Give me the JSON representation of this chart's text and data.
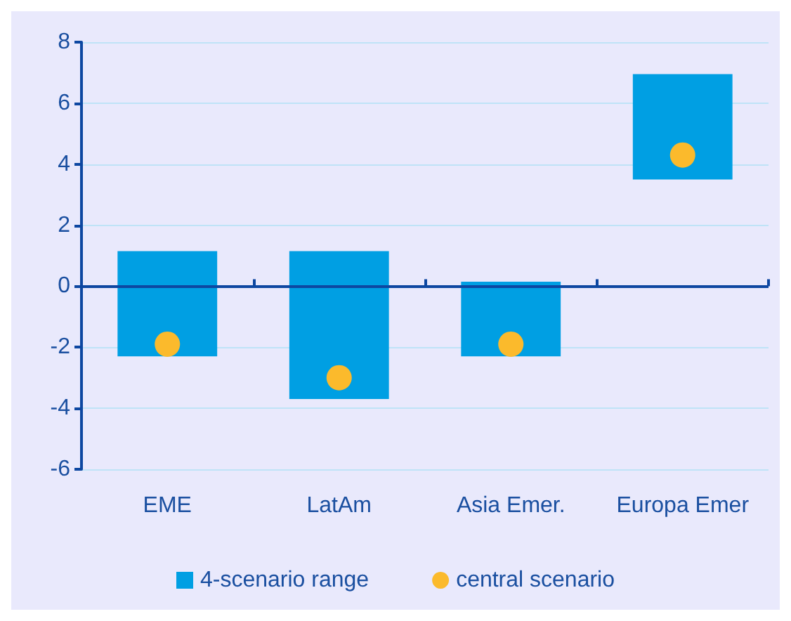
{
  "chart_data": {
    "type": "bar",
    "categories": [
      "EME",
      "LatAm",
      "Asia Emer.",
      "Europa Emer"
    ],
    "series": [
      {
        "name": "4-scenario range",
        "color": "#009fe3",
        "base": [
          -2.3,
          -3.7,
          -2.3,
          3.5
        ],
        "values": [
          3.45,
          4.85,
          2.45,
          3.45
        ]
      },
      {
        "name": "central scenario",
        "type": "scatter",
        "color": "#fbba2c",
        "x": [
          "EME",
          "LatAm",
          "Asia Emer.",
          "Europa Emer"
        ],
        "values": [
          -1.9,
          -3.0,
          -1.9,
          4.3
        ]
      }
    ],
    "ylim": [
      -6,
      8
    ],
    "yticks": [
      -6,
      -4,
      -2,
      0,
      2,
      4,
      6,
      8
    ],
    "ref_lines": [
      {
        "axis": "y",
        "value": 0,
        "color": "#0d47a1"
      }
    ],
    "grid": "y",
    "legend": "bottom",
    "marker": "circle"
  }
}
